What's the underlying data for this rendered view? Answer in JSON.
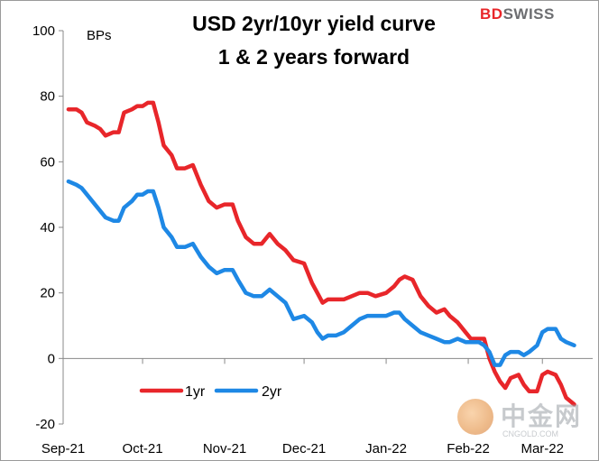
{
  "brand": {
    "part1": "BD",
    "part2": "SWISS"
  },
  "watermark": {
    "main": "中金网",
    "sub": "CNGOLD.COM"
  },
  "chart_data": {
    "type": "line",
    "title": "USD 2yr/10yr yield curve",
    "subtitle": "1 & 2 years forward",
    "ylabel": "BPs",
    "ylim": [
      -20,
      100
    ],
    "yticks": [
      100,
      80,
      60,
      40,
      20,
      0,
      -20
    ],
    "xlim": [
      "2021-09-01",
      "2022-03-20"
    ],
    "xticks": [
      {
        "label": "Sep-21",
        "date": "2021-09-01"
      },
      {
        "label": "Oct-21",
        "date": "2021-10-01"
      },
      {
        "label": "Nov-21",
        "date": "2021-11-01"
      },
      {
        "label": "Dec-21",
        "date": "2021-12-01"
      },
      {
        "label": "Jan-22",
        "date": "2022-01-01"
      },
      {
        "label": "Feb-22",
        "date": "2022-02-01"
      },
      {
        "label": "Mar-22",
        "date": "2022-03-01"
      }
    ],
    "legend": "bottom-left",
    "grid": false,
    "series": [
      {
        "name": "1yr",
        "color": "#e8262a",
        "points": [
          [
            "2021-09-03",
            76
          ],
          [
            "2021-09-06",
            76
          ],
          [
            "2021-09-08",
            75
          ],
          [
            "2021-09-10",
            72
          ],
          [
            "2021-09-13",
            71
          ],
          [
            "2021-09-15",
            70
          ],
          [
            "2021-09-17",
            68
          ],
          [
            "2021-09-20",
            69
          ],
          [
            "2021-09-22",
            69
          ],
          [
            "2021-09-24",
            75
          ],
          [
            "2021-09-27",
            76
          ],
          [
            "2021-09-29",
            77
          ],
          [
            "2021-10-01",
            77
          ],
          [
            "2021-10-03",
            78
          ],
          [
            "2021-10-05",
            78
          ],
          [
            "2021-10-07",
            72
          ],
          [
            "2021-10-09",
            65
          ],
          [
            "2021-10-12",
            62
          ],
          [
            "2021-10-14",
            58
          ],
          [
            "2021-10-17",
            58
          ],
          [
            "2021-10-20",
            59
          ],
          [
            "2021-10-23",
            53
          ],
          [
            "2021-10-26",
            48
          ],
          [
            "2021-10-29",
            46
          ],
          [
            "2021-11-01",
            47
          ],
          [
            "2021-11-04",
            47
          ],
          [
            "2021-11-06",
            42
          ],
          [
            "2021-11-09",
            37
          ],
          [
            "2021-11-12",
            35
          ],
          [
            "2021-11-15",
            35
          ],
          [
            "2021-11-18",
            38
          ],
          [
            "2021-11-21",
            35
          ],
          [
            "2021-11-24",
            33
          ],
          [
            "2021-11-27",
            30
          ],
          [
            "2021-12-01",
            29
          ],
          [
            "2021-12-04",
            23
          ],
          [
            "2021-12-06",
            20
          ],
          [
            "2021-12-08",
            17
          ],
          [
            "2021-12-10",
            18
          ],
          [
            "2021-12-13",
            18
          ],
          [
            "2021-12-16",
            18
          ],
          [
            "2021-12-19",
            19
          ],
          [
            "2021-12-22",
            20
          ],
          [
            "2021-12-25",
            20
          ],
          [
            "2021-12-28",
            19
          ],
          [
            "2022-01-01",
            20
          ],
          [
            "2022-01-04",
            22
          ],
          [
            "2022-01-06",
            24
          ],
          [
            "2022-01-08",
            25
          ],
          [
            "2022-01-11",
            24
          ],
          [
            "2022-01-14",
            19
          ],
          [
            "2022-01-17",
            16
          ],
          [
            "2022-01-20",
            14
          ],
          [
            "2022-01-23",
            15
          ],
          [
            "2022-01-25",
            13
          ],
          [
            "2022-01-28",
            11
          ],
          [
            "2022-01-31",
            8
          ],
          [
            "2022-02-02",
            6
          ],
          [
            "2022-02-05",
            6
          ],
          [
            "2022-02-07",
            6
          ],
          [
            "2022-02-09",
            0
          ],
          [
            "2022-02-11",
            -4
          ],
          [
            "2022-02-13",
            -7
          ],
          [
            "2022-02-15",
            -9
          ],
          [
            "2022-02-17",
            -6
          ],
          [
            "2022-02-20",
            -5
          ],
          [
            "2022-02-22",
            -8
          ],
          [
            "2022-02-24",
            -10
          ],
          [
            "2022-02-27",
            -10
          ],
          [
            "2022-03-01",
            -5
          ],
          [
            "2022-03-03",
            -4
          ],
          [
            "2022-03-06",
            -5
          ],
          [
            "2022-03-08",
            -8
          ],
          [
            "2022-03-10",
            -12
          ],
          [
            "2022-03-13",
            -14
          ]
        ]
      },
      {
        "name": "2yr",
        "color": "#1e88e5",
        "points": [
          [
            "2021-09-03",
            54
          ],
          [
            "2021-09-06",
            53
          ],
          [
            "2021-09-08",
            52
          ],
          [
            "2021-09-10",
            50
          ],
          [
            "2021-09-13",
            47
          ],
          [
            "2021-09-15",
            45
          ],
          [
            "2021-09-17",
            43
          ],
          [
            "2021-09-20",
            42
          ],
          [
            "2021-09-22",
            42
          ],
          [
            "2021-09-24",
            46
          ],
          [
            "2021-09-27",
            48
          ],
          [
            "2021-09-29",
            50
          ],
          [
            "2021-10-01",
            50
          ],
          [
            "2021-10-03",
            51
          ],
          [
            "2021-10-05",
            51
          ],
          [
            "2021-10-07",
            46
          ],
          [
            "2021-10-09",
            40
          ],
          [
            "2021-10-12",
            37
          ],
          [
            "2021-10-14",
            34
          ],
          [
            "2021-10-17",
            34
          ],
          [
            "2021-10-20",
            35
          ],
          [
            "2021-10-23",
            31
          ],
          [
            "2021-10-26",
            28
          ],
          [
            "2021-10-29",
            26
          ],
          [
            "2021-11-01",
            27
          ],
          [
            "2021-11-04",
            27
          ],
          [
            "2021-11-06",
            24
          ],
          [
            "2021-11-09",
            20
          ],
          [
            "2021-11-12",
            19
          ],
          [
            "2021-11-15",
            19
          ],
          [
            "2021-11-18",
            21
          ],
          [
            "2021-11-21",
            19
          ],
          [
            "2021-11-24",
            17
          ],
          [
            "2021-11-27",
            12
          ],
          [
            "2021-12-01",
            13
          ],
          [
            "2021-12-04",
            11
          ],
          [
            "2021-12-06",
            8
          ],
          [
            "2021-12-08",
            6
          ],
          [
            "2021-12-10",
            7
          ],
          [
            "2021-12-13",
            7
          ],
          [
            "2021-12-16",
            8
          ],
          [
            "2021-12-19",
            10
          ],
          [
            "2021-12-22",
            12
          ],
          [
            "2021-12-25",
            13
          ],
          [
            "2021-12-28",
            13
          ],
          [
            "2022-01-01",
            13
          ],
          [
            "2022-01-04",
            14
          ],
          [
            "2022-01-06",
            14
          ],
          [
            "2022-01-08",
            12
          ],
          [
            "2022-01-11",
            10
          ],
          [
            "2022-01-14",
            8
          ],
          [
            "2022-01-17",
            7
          ],
          [
            "2022-01-20",
            6
          ],
          [
            "2022-01-23",
            5
          ],
          [
            "2022-01-25",
            5
          ],
          [
            "2022-01-28",
            6
          ],
          [
            "2022-01-31",
            5
          ],
          [
            "2022-02-02",
            5
          ],
          [
            "2022-02-05",
            5
          ],
          [
            "2022-02-07",
            4
          ],
          [
            "2022-02-09",
            2
          ],
          [
            "2022-02-11",
            -2
          ],
          [
            "2022-02-13",
            -2
          ],
          [
            "2022-02-15",
            1
          ],
          [
            "2022-02-17",
            2
          ],
          [
            "2022-02-20",
            2
          ],
          [
            "2022-02-22",
            1
          ],
          [
            "2022-02-24",
            2
          ],
          [
            "2022-02-27",
            4
          ],
          [
            "2022-03-01",
            8
          ],
          [
            "2022-03-03",
            9
          ],
          [
            "2022-03-06",
            9
          ],
          [
            "2022-03-08",
            6
          ],
          [
            "2022-03-10",
            5
          ],
          [
            "2022-03-13",
            4
          ]
        ]
      }
    ]
  }
}
